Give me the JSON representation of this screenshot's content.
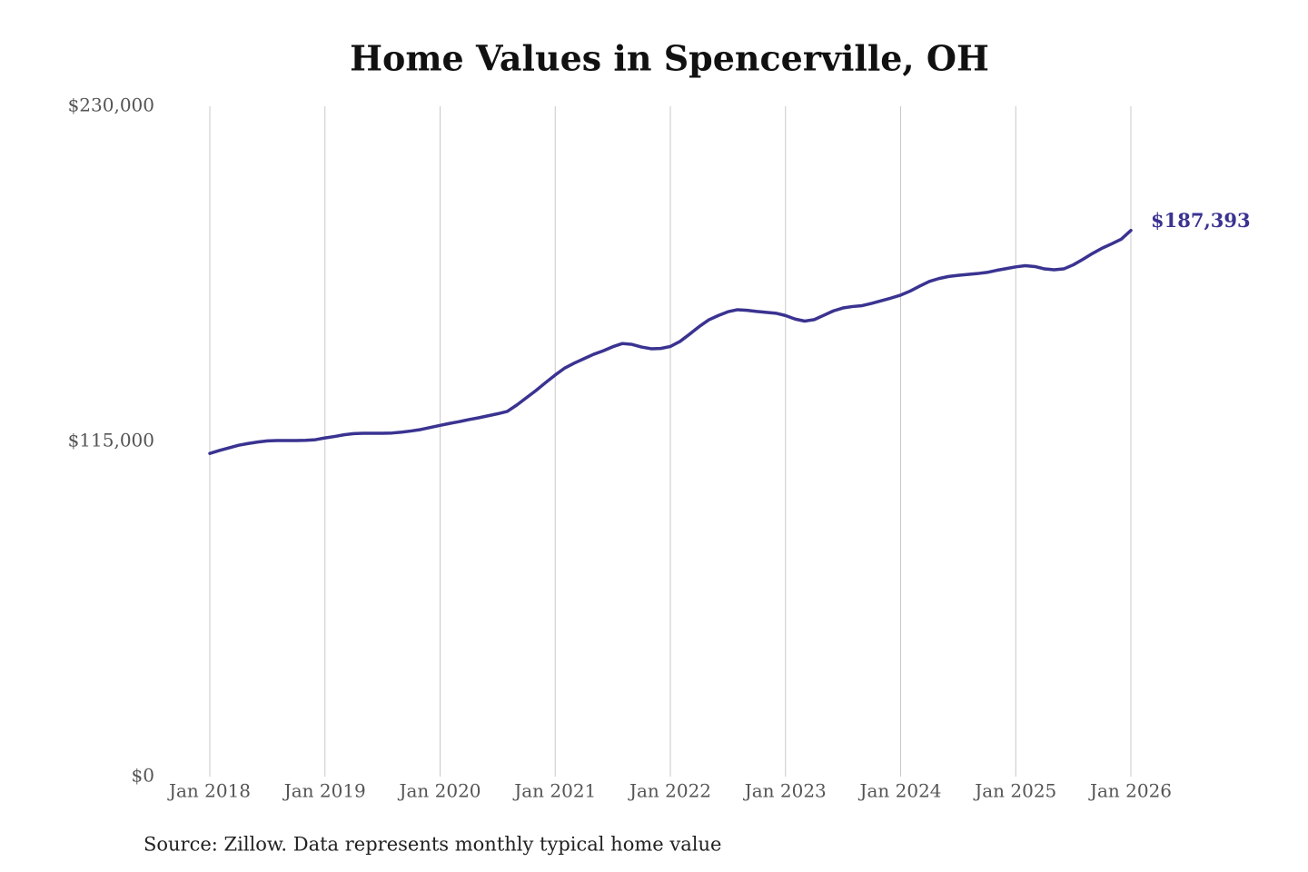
{
  "chart_data": {
    "type": "line",
    "title": "Home Values in Spencerville, OH",
    "source": "Source: Zillow. Data represents monthly typical home value",
    "x": [
      "2018-01",
      "2018-02",
      "2018-03",
      "2018-04",
      "2018-05",
      "2018-06",
      "2018-07",
      "2018-08",
      "2018-09",
      "2018-10",
      "2018-11",
      "2018-12",
      "2019-01",
      "2019-02",
      "2019-03",
      "2019-04",
      "2019-05",
      "2019-06",
      "2019-07",
      "2019-08",
      "2019-09",
      "2019-10",
      "2019-11",
      "2019-12",
      "2020-01",
      "2020-02",
      "2020-03",
      "2020-04",
      "2020-05",
      "2020-06",
      "2020-07",
      "2020-08",
      "2020-09",
      "2020-10",
      "2020-11",
      "2020-12",
      "2021-01",
      "2021-02",
      "2021-03",
      "2021-04",
      "2021-05",
      "2021-06",
      "2021-07",
      "2021-08",
      "2021-09",
      "2021-10",
      "2021-11",
      "2021-12",
      "2022-01",
      "2022-02",
      "2022-03",
      "2022-04",
      "2022-05",
      "2022-06",
      "2022-07",
      "2022-08",
      "2022-09",
      "2022-10",
      "2022-11",
      "2022-12",
      "2023-01",
      "2023-02",
      "2023-03",
      "2023-04",
      "2023-05",
      "2023-06",
      "2023-07",
      "2023-08",
      "2023-09",
      "2023-10",
      "2023-11",
      "2023-12",
      "2024-01",
      "2024-02",
      "2024-03",
      "2024-04",
      "2024-05",
      "2024-06",
      "2024-07",
      "2024-08",
      "2024-09",
      "2024-10",
      "2024-11",
      "2024-12",
      "2025-01",
      "2025-02",
      "2025-03",
      "2025-04",
      "2025-05",
      "2025-06",
      "2025-07",
      "2025-08",
      "2025-09",
      "2025-10",
      "2025-11",
      "2025-12",
      "2026-01"
    ],
    "series": [
      {
        "name": "Home value",
        "color": "#3a3391",
        "values": [
          110900,
          111900,
          112800,
          113700,
          114300,
          114800,
          115200,
          115300,
          115300,
          115300,
          115400,
          115600,
          116200,
          116700,
          117300,
          117700,
          117800,
          117800,
          117800,
          117900,
          118200,
          118600,
          119100,
          119800,
          120500,
          121200,
          121800,
          122500,
          123100,
          123800,
          124500,
          125300,
          127500,
          130000,
          132500,
          135200,
          137800,
          140200,
          141900,
          143400,
          144900,
          146100,
          147500,
          148600,
          148300,
          147400,
          146800,
          146900,
          147600,
          149300,
          151800,
          154400,
          156700,
          158200,
          159500,
          160200,
          160000,
          159600,
          159300,
          159000,
          158200,
          157000,
          156300,
          156800,
          158300,
          159800,
          160800,
          161300,
          161600,
          162400,
          163300,
          164200,
          165200,
          166600,
          168300,
          169900,
          170900,
          171600,
          172000,
          172300,
          172600,
          173000,
          173700,
          174300,
          174900,
          175300,
          175000,
          174200,
          173900,
          174200,
          175600,
          177500,
          179500,
          181300,
          182800,
          184400,
          187393
        ],
        "value_labels": [
          null,
          null,
          null,
          null,
          null,
          null,
          null,
          null,
          null,
          null,
          null,
          null,
          null,
          null,
          null,
          null,
          null,
          null,
          null,
          null,
          null,
          null,
          null,
          null,
          null,
          null,
          null,
          null,
          null,
          null,
          null,
          null,
          null,
          null,
          null,
          null,
          null,
          null,
          null,
          null,
          null,
          null,
          null,
          null,
          null,
          null,
          null,
          null,
          null,
          null,
          null,
          null,
          null,
          null,
          null,
          null,
          null,
          null,
          null,
          null,
          null,
          null,
          null,
          null,
          null,
          null,
          null,
          null,
          null,
          null,
          null,
          null,
          null,
          null,
          null,
          null,
          null,
          null,
          null,
          null,
          null,
          null,
          null,
          null,
          null,
          null,
          null,
          null,
          null,
          null,
          null,
          null,
          null,
          null,
          null,
          null,
          "$187,393"
        ]
      }
    ],
    "ylim": [
      0,
      230000
    ],
    "yticks": [
      {
        "value": 0,
        "label": "$0"
      },
      {
        "value": 115000,
        "label": "$115,000"
      },
      {
        "value": 230000,
        "label": "$230,000"
      }
    ],
    "xticks": [
      {
        "value": "2018-01",
        "label": "Jan 2018"
      },
      {
        "value": "2019-01",
        "label": "Jan 2019"
      },
      {
        "value": "2020-01",
        "label": "Jan 2020"
      },
      {
        "value": "2021-01",
        "label": "Jan 2021"
      },
      {
        "value": "2022-01",
        "label": "Jan 2022"
      },
      {
        "value": "2023-01",
        "label": "Jan 2023"
      },
      {
        "value": "2024-01",
        "label": "Jan 2024"
      },
      {
        "value": "2025-01",
        "label": "Jan 2025"
      },
      {
        "value": "2026-01",
        "label": "Jan 2026"
      }
    ],
    "grid": "x"
  }
}
